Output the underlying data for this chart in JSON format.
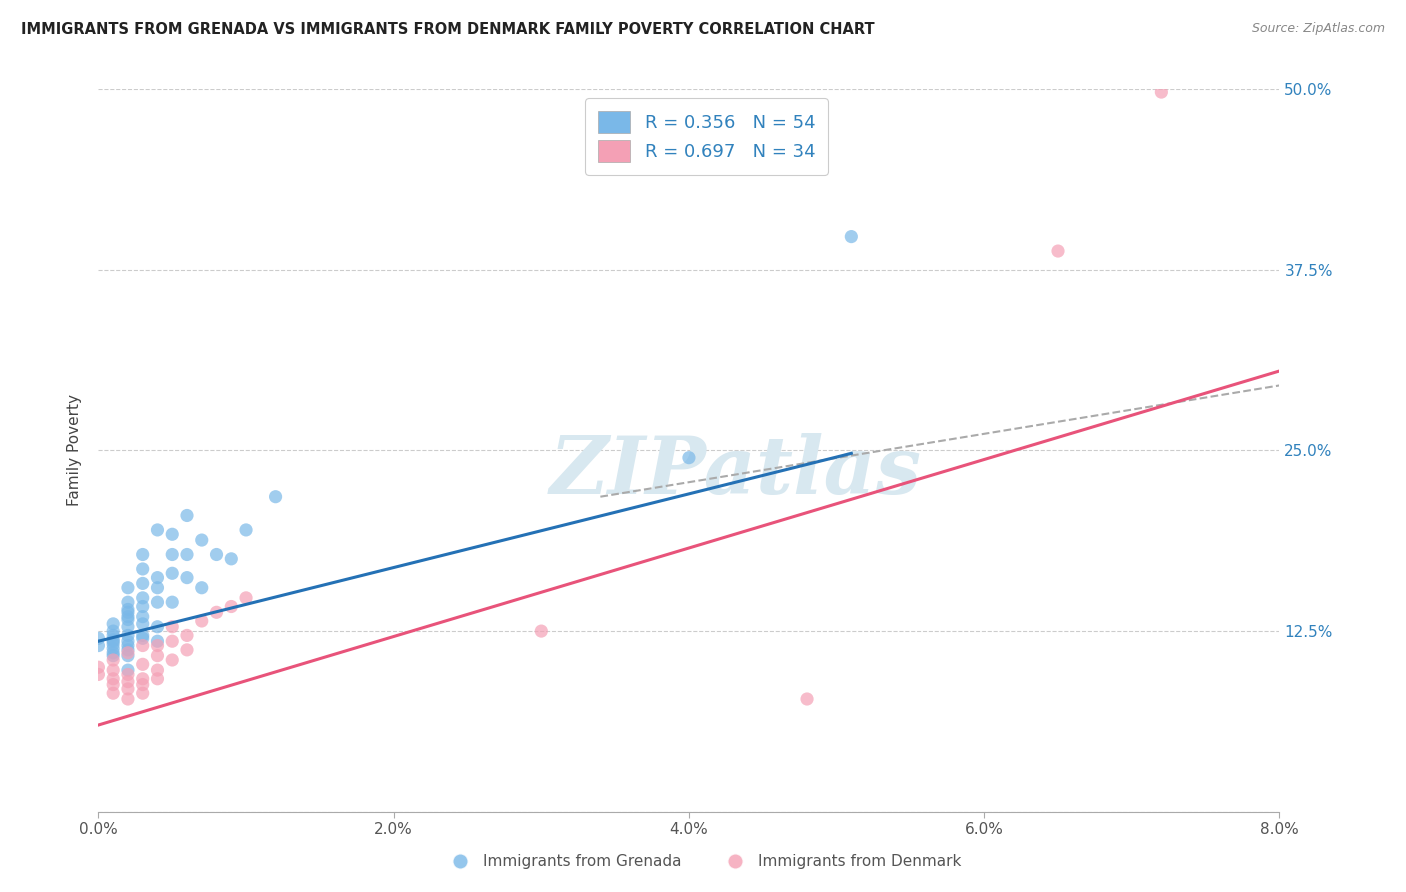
{
  "title": "IMMIGRANTS FROM GRENADA VS IMMIGRANTS FROM DENMARK FAMILY POVERTY CORRELATION CHART",
  "source": "Source: ZipAtlas.com",
  "xlim": [
    0.0,
    0.08
  ],
  "ylim": [
    0.0,
    0.5
  ],
  "series1_label": "Immigrants from Grenada",
  "series2_label": "Immigrants from Denmark",
  "color_grenada": "#7ab8e8",
  "color_denmark": "#f4a0b5",
  "color_grenada_line": "#2471b5",
  "color_denmark_line": "#e8537a",
  "color_dashed": "#aaaaaa",
  "watermark_text": "ZIPatlas",
  "watermark_color": "#d8e8f0",
  "background_color": "#ffffff",
  "ylabel": "Family Poverty",
  "legend_r1": "0.356",
  "legend_n1": "54",
  "legend_r2": "0.697",
  "legend_n2": "34",
  "grenada_x": [
    0.0,
    0.0,
    0.001,
    0.001,
    0.001,
    0.001,
    0.001,
    0.001,
    0.001,
    0.001,
    0.001,
    0.002,
    0.002,
    0.002,
    0.002,
    0.002,
    0.002,
    0.002,
    0.002,
    0.002,
    0.002,
    0.002,
    0.002,
    0.002,
    0.003,
    0.003,
    0.003,
    0.003,
    0.003,
    0.003,
    0.003,
    0.003,
    0.003,
    0.004,
    0.004,
    0.004,
    0.004,
    0.004,
    0.004,
    0.005,
    0.005,
    0.005,
    0.005,
    0.006,
    0.006,
    0.006,
    0.007,
    0.007,
    0.008,
    0.009,
    0.01,
    0.012,
    0.04,
    0.051
  ],
  "grenada_y": [
    0.115,
    0.12,
    0.13,
    0.125,
    0.118,
    0.122,
    0.11,
    0.108,
    0.113,
    0.116,
    0.119,
    0.135,
    0.14,
    0.128,
    0.133,
    0.122,
    0.115,
    0.108,
    0.145,
    0.138,
    0.112,
    0.118,
    0.155,
    0.098,
    0.148,
    0.158,
    0.142,
    0.135,
    0.12,
    0.13,
    0.168,
    0.178,
    0.122,
    0.155,
    0.162,
    0.145,
    0.128,
    0.118,
    0.195,
    0.165,
    0.178,
    0.145,
    0.192,
    0.205,
    0.178,
    0.162,
    0.188,
    0.155,
    0.178,
    0.175,
    0.195,
    0.218,
    0.245,
    0.398
  ],
  "denmark_x": [
    0.0,
    0.0,
    0.001,
    0.001,
    0.001,
    0.001,
    0.001,
    0.002,
    0.002,
    0.002,
    0.002,
    0.002,
    0.003,
    0.003,
    0.003,
    0.003,
    0.003,
    0.004,
    0.004,
    0.004,
    0.004,
    0.005,
    0.005,
    0.005,
    0.006,
    0.006,
    0.007,
    0.008,
    0.009,
    0.01,
    0.03,
    0.048,
    0.065,
    0.072
  ],
  "denmark_y": [
    0.1,
    0.095,
    0.088,
    0.092,
    0.105,
    0.082,
    0.098,
    0.09,
    0.085,
    0.095,
    0.11,
    0.078,
    0.092,
    0.088,
    0.102,
    0.115,
    0.082,
    0.098,
    0.108,
    0.092,
    0.115,
    0.105,
    0.118,
    0.128,
    0.112,
    0.122,
    0.132,
    0.138,
    0.142,
    0.148,
    0.125,
    0.078,
    0.388,
    0.498
  ],
  "grenada_line_x": [
    0.0,
    0.051
  ],
  "grenada_line_y": [
    0.118,
    0.248
  ],
  "denmark_line_x": [
    0.0,
    0.08
  ],
  "denmark_line_y": [
    0.06,
    0.305
  ],
  "dashed_line_x": [
    0.034,
    0.08
  ],
  "dashed_line_y": [
    0.218,
    0.295
  ]
}
